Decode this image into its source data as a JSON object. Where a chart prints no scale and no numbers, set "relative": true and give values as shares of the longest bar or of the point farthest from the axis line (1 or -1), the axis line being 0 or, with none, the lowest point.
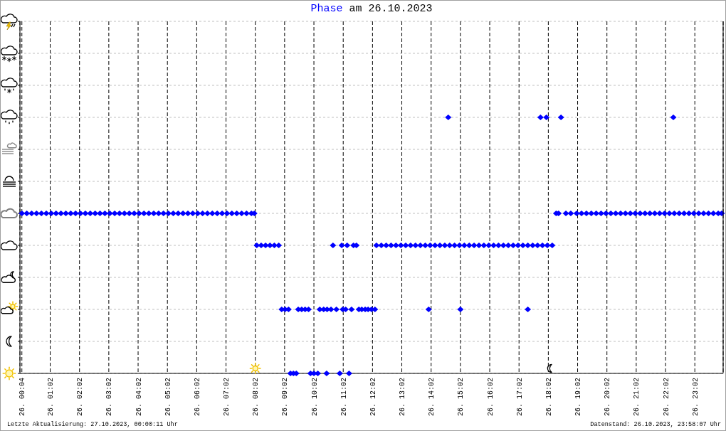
{
  "chart_data": {
    "type": "scatter",
    "title": "am 26.10.2023",
    "annotations": [
      "Letzte Aktualisierung: 27.10.2023, 00:00:11 Uhr",
      "Datenstand: 26.10.2023, 23:58:07 Uhr"
    ],
    "relative": true,
    "grid": true,
    "legend": "top",
    "marker": "diamond",
    "xlim": [
      "2023-10-26T00:00",
      "2023-10-27T00:00"
    ],
    "xticks": [
      {
        "value": "2023-10-26T00:04",
        "label": "26. 00:04"
      },
      {
        "value": "2023-10-26T01:02",
        "label": "26. 01:02"
      },
      {
        "value": "2023-10-26T02:02",
        "label": "26. 02:02"
      },
      {
        "value": "2023-10-26T03:02",
        "label": "26. 03:02"
      },
      {
        "value": "2023-10-26T04:02",
        "label": "26. 04:02"
      },
      {
        "value": "2023-10-26T05:02",
        "label": "26. 05:02"
      },
      {
        "value": "2023-10-26T06:02",
        "label": "26. 06:02"
      },
      {
        "value": "2023-10-26T07:02",
        "label": "26. 07:02"
      },
      {
        "value": "2023-10-26T08:02",
        "label": "26. 08:02"
      },
      {
        "value": "2023-10-26T09:02",
        "label": "26. 09:02"
      },
      {
        "value": "2023-10-26T10:02",
        "label": "26. 10:02"
      },
      {
        "value": "2023-10-26T11:02",
        "label": "26. 11:02"
      },
      {
        "value": "2023-10-26T12:02",
        "label": "26. 12:02"
      },
      {
        "value": "2023-10-26T13:02",
        "label": "26. 13:02"
      },
      {
        "value": "2023-10-26T14:02",
        "label": "26. 14:02"
      },
      {
        "value": "2023-10-26T15:02",
        "label": "26. 15:02"
      },
      {
        "value": "2023-10-26T16:02",
        "label": "26. 16:02"
      },
      {
        "value": "2023-10-26T17:02",
        "label": "26. 17:02"
      },
      {
        "value": "2023-10-26T18:02",
        "label": "26. 18:02"
      },
      {
        "value": "2023-10-26T19:02",
        "label": "26. 19:02"
      },
      {
        "value": "2023-10-26T20:02",
        "label": "26. 20:02"
      },
      {
        "value": "2023-10-26T21:02",
        "label": "26. 21:02"
      },
      {
        "value": "2023-10-26T22:02",
        "label": "26. 22:02"
      },
      {
        "value": "2023-10-26T23:02",
        "label": "26. 23:02"
      }
    ],
    "x": [
      "2023-10-26T00:04",
      "2023-10-26T00:14",
      "2023-10-26T00:24",
      "2023-10-26T00:34",
      "2023-10-26T00:44",
      "2023-10-26T00:54",
      "2023-10-26T01:04",
      "2023-10-26T01:14",
      "2023-10-26T01:24",
      "2023-10-26T01:34",
      "2023-10-26T01:44",
      "2023-10-26T01:54",
      "2023-10-26T02:04",
      "2023-10-26T02:14",
      "2023-10-26T02:24",
      "2023-10-26T02:34",
      "2023-10-26T02:44",
      "2023-10-26T02:54",
      "2023-10-26T03:04",
      "2023-10-26T03:14",
      "2023-10-26T03:24",
      "2023-10-26T03:34",
      "2023-10-26T03:44",
      "2023-10-26T03:54",
      "2023-10-26T04:04",
      "2023-10-26T04:14",
      "2023-10-26T04:24",
      "2023-10-26T04:34",
      "2023-10-26T04:44",
      "2023-10-26T04:54",
      "2023-10-26T05:04",
      "2023-10-26T05:14",
      "2023-10-26T05:24",
      "2023-10-26T05:34",
      "2023-10-26T05:44",
      "2023-10-26T05:54",
      "2023-10-26T06:04",
      "2023-10-26T06:14",
      "2023-10-26T06:24",
      "2023-10-26T06:34",
      "2023-10-26T06:44",
      "2023-10-26T06:54",
      "2023-10-26T07:04",
      "2023-10-26T07:14",
      "2023-10-26T07:24",
      "2023-10-26T07:34",
      "2023-10-26T07:44",
      "2023-10-26T07:54",
      "2023-10-26T08:00",
      "2023-10-26T08:05",
      "2023-10-26T08:14",
      "2023-10-26T08:23",
      "2023-10-26T08:32",
      "2023-10-26T08:41",
      "2023-10-26T08:50",
      "2023-10-26T08:56",
      "2023-10-26T09:03",
      "2023-10-26T09:10",
      "2023-10-26T09:14",
      "2023-10-26T09:20",
      "2023-10-26T09:26",
      "2023-10-26T09:30",
      "2023-10-26T09:37",
      "2023-10-26T09:44",
      "2023-10-26T09:51",
      "2023-10-26T09:55",
      "2023-10-26T10:02",
      "2023-10-26T10:10",
      "2023-10-26T10:14",
      "2023-10-26T10:22",
      "2023-10-26T10:29",
      "2023-10-26T10:37",
      "2023-10-26T10:28",
      "2023-10-26T10:41",
      "2023-10-26T10:48",
      "2023-10-26T10:55",
      "2023-10-26T10:59",
      "2023-10-26T11:01",
      "2023-10-26T11:07",
      "2023-10-26T11:10",
      "2023-10-26T11:14",
      "2023-10-26T11:19",
      "2023-10-26T11:23",
      "2023-10-26T11:29",
      "2023-10-26T11:34",
      "2023-10-26T11:40",
      "2023-10-26T11:47",
      "2023-10-26T11:53",
      "2023-10-26T12:00",
      "2023-10-26T12:07",
      "2023-10-26T12:10",
      "2023-10-26T12:20",
      "2023-10-26T12:30",
      "2023-10-26T12:40",
      "2023-10-26T12:50",
      "2023-10-26T13:00",
      "2023-10-26T13:10",
      "2023-10-26T13:20",
      "2023-10-26T13:30",
      "2023-10-26T13:40",
      "2023-10-26T13:50",
      "2023-10-26T14:00",
      "2023-10-26T14:10",
      "2023-10-26T14:20",
      "2023-10-26T14:30",
      "2023-10-26T14:40",
      "2023-10-26T14:50",
      "2023-10-26T15:00",
      "2023-10-26T15:10",
      "2023-10-26T15:20",
      "2023-10-26T15:30",
      "2023-10-26T15:40",
      "2023-10-26T15:50",
      "2023-10-26T16:00",
      "2023-10-26T16:10",
      "2023-10-26T16:20",
      "2023-10-26T16:30",
      "2023-10-26T16:40",
      "2023-10-26T16:50",
      "2023-10-26T17:00",
      "2023-10-26T17:10",
      "2023-10-26T17:20",
      "2023-10-26T17:30",
      "2023-10-26T17:40",
      "2023-10-26T17:50",
      "2023-10-26T18:00",
      "2023-10-26T18:10",
      "2023-10-26T13:57",
      "2023-10-26T15:02",
      "2023-10-26T17:20",
      "2023-10-26T14:37",
      "2023-10-26T17:46",
      "2023-10-26T17:58",
      "2023-10-26T18:28",
      "2023-10-26T18:18",
      "2023-10-26T18:23",
      "2023-10-26T18:38",
      "2023-10-26T18:48",
      "2023-10-26T19:00",
      "2023-10-26T19:10",
      "2023-10-26T19:20",
      "2023-10-26T19:30",
      "2023-10-26T19:40",
      "2023-10-26T19:50",
      "2023-10-26T20:00",
      "2023-10-26T20:10",
      "2023-10-26T20:20",
      "2023-10-26T20:30",
      "2023-10-26T20:40",
      "2023-10-26T20:50",
      "2023-10-26T21:00",
      "2023-10-26T21:10",
      "2023-10-26T21:20",
      "2023-10-26T21:30",
      "2023-10-26T21:40",
      "2023-10-26T21:50",
      "2023-10-26T22:00",
      "2023-10-26T22:10",
      "2023-10-26T22:20",
      "2023-10-26T22:30",
      "2023-10-26T22:40",
      "2023-10-26T22:50",
      "2023-10-26T23:00",
      "2023-10-26T23:10",
      "2023-10-26T23:20",
      "2023-10-26T23:30",
      "2023-10-26T23:40",
      "2023-10-26T23:50",
      "2023-10-26T23:57",
      "2023-10-26T22:18"
    ],
    "series": [
      {
        "name": "Phase",
        "color": "#0000ff",
        "values": [
          0.625,
          0.625,
          0.625,
          0.625,
          0.625,
          0.625,
          0.625,
          0.625,
          0.625,
          0.625,
          0.625,
          0.625,
          0.625,
          0.625,
          0.625,
          0.625,
          0.625,
          0.625,
          0.625,
          0.625,
          0.625,
          0.625,
          0.625,
          0.625,
          0.625,
          0.625,
          0.625,
          0.625,
          0.625,
          0.625,
          0.625,
          0.625,
          0.625,
          0.625,
          0.625,
          0.625,
          0.625,
          0.625,
          0.625,
          0.625,
          0.625,
          0.625,
          0.625,
          0.625,
          0.625,
          0.625,
          0.625,
          0.625,
          0.625,
          0.5,
          0.5,
          0.5,
          0.5,
          0.5,
          0.5,
          0.25,
          0.25,
          0.25,
          0,
          0,
          0,
          0.25,
          0.25,
          0.25,
          0.25,
          0,
          0,
          0,
          0.25,
          0.25,
          0.25,
          0.25,
          0,
          0.5,
          0.25,
          0,
          0.5,
          0.25,
          0.25,
          0.5,
          0,
          0.25,
          0.5,
          0.5,
          0.25,
          0.25,
          0.25,
          0.25,
          0.25,
          0.25,
          0.5,
          0.5,
          0.5,
          0.5,
          0.5,
          0.5,
          0.5,
          0.5,
          0.5,
          0.5,
          0.5,
          0.5,
          0.5,
          0.5,
          0.5,
          0.5,
          0.5,
          0.5,
          0.5,
          0.5,
          0.5,
          0.5,
          0.5,
          0.5,
          0.5,
          0.5,
          0.5,
          0.5,
          0.5,
          0.5,
          0.5,
          0.5,
          0.5,
          0.5,
          0.5,
          0.5,
          0.5,
          0.25,
          0.25,
          0.25,
          1,
          1,
          1,
          1,
          0.625,
          0.625,
          0.625,
          0.625,
          0.625,
          0.625,
          0.625,
          0.625,
          0.625,
          0.625,
          0.625,
          0.625,
          0.625,
          0.625,
          0.625,
          0.625,
          0.625,
          0.625,
          0.625,
          0.625,
          0.625,
          0.625,
          0.625,
          0.625,
          0.625,
          0.625,
          0.625,
          0.625,
          0.625,
          0.625,
          0.625,
          0.625,
          0.625,
          0.625,
          0.625,
          1
        ]
      }
    ]
  }
}
